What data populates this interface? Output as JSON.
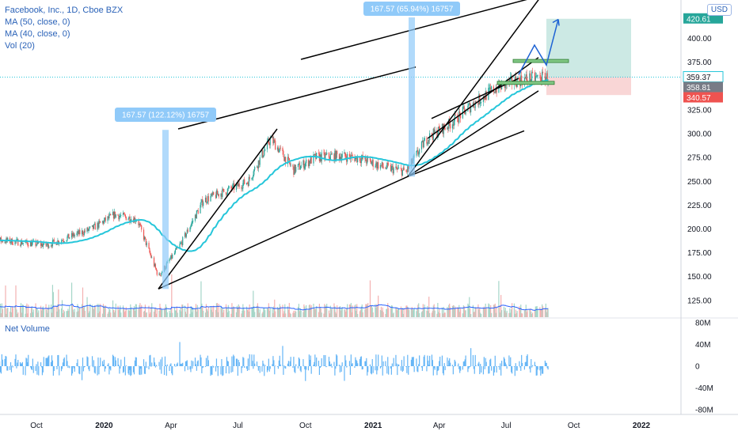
{
  "legend": {
    "symbol": "Facebook, Inc., 1D, Cboe BZX",
    "ma50": "MA (50, close, 0)",
    "ma40": "MA (40, close, 0)",
    "vol": "Vol (20)"
  },
  "currency_button": "USD",
  "net_volume_title": "Net Volume",
  "colors": {
    "up": "#26a69a",
    "down": "#ef5350",
    "ma": "#26c6da",
    "trend": "#000000",
    "level_line": "#26c6da",
    "measure": "#90caf9",
    "target_zone": "#cce9e4",
    "stop_zone": "#f9d6d6",
    "box": "#81c784",
    "volume_ma": "#2962ff",
    "net_volume": "#64b5f6",
    "arrow": "#1e63d4"
  },
  "annotations": {
    "measure1": "167.57 (122.12%) 16757",
    "measure2": "167.57 (65.94%) 16757"
  },
  "price_labels": {
    "target": "420.61",
    "last": "359.37",
    "entry": "358.81",
    "stop": "340.57"
  },
  "chart_data": [
    {
      "type": "candlestick",
      "title": "Facebook, Inc., 1D, Cboe BZX",
      "x_ticks": [
        "Oct",
        "2020",
        "Apr",
        "Jul",
        "Oct",
        "2021",
        "Apr",
        "Jul",
        "Oct",
        "2022"
      ],
      "y_ticks": [
        125,
        150,
        175,
        200,
        225,
        250,
        275,
        300,
        325,
        350,
        375,
        400
      ],
      "y_axis_labels": [
        "125.00",
        "150.00",
        "175.00",
        "200.00",
        "225.00",
        "250.00",
        "275.00",
        "300.00",
        "325.00",
        "350.00",
        "375.00",
        "400.00"
      ],
      "ylim": [
        110,
        430
      ],
      "grid": false,
      "approx_close_path": [
        {
          "x": "2019-08",
          "y": 188
        },
        {
          "x": "2019-10",
          "y": 183
        },
        {
          "x": "2019-12",
          "y": 200
        },
        {
          "x": "2020-01",
          "y": 215
        },
        {
          "x": "2020-02",
          "y": 210
        },
        {
          "x": "2020-03",
          "y": 150
        },
        {
          "x": "2020-04",
          "y": 185
        },
        {
          "x": "2020-05",
          "y": 230
        },
        {
          "x": "2020-06",
          "y": 240
        },
        {
          "x": "2020-07",
          "y": 250
        },
        {
          "x": "2020-08",
          "y": 295
        },
        {
          "x": "2020-09",
          "y": 262
        },
        {
          "x": "2020-10",
          "y": 275
        },
        {
          "x": "2020-11",
          "y": 277
        },
        {
          "x": "2020-12",
          "y": 274
        },
        {
          "x": "2021-01",
          "y": 265
        },
        {
          "x": "2021-02",
          "y": 260
        },
        {
          "x": "2021-03",
          "y": 295
        },
        {
          "x": "2021-04",
          "y": 310
        },
        {
          "x": "2021-05",
          "y": 330
        },
        {
          "x": "2021-06",
          "y": 347
        },
        {
          "x": "2021-07",
          "y": 356
        },
        {
          "x": "2021-08",
          "y": 359
        }
      ],
      "series": [
        {
          "name": "MA (50, close, 0)"
        }
      ],
      "price_scale_labels": [
        "420.61",
        "359.37",
        "358.81",
        "340.57"
      ]
    },
    {
      "type": "bar",
      "title": "Net Volume",
      "y_ticks": [
        "80M",
        "40M",
        "0",
        "-40M",
        "-80M"
      ],
      "ylim": [
        -90,
        90
      ]
    }
  ]
}
